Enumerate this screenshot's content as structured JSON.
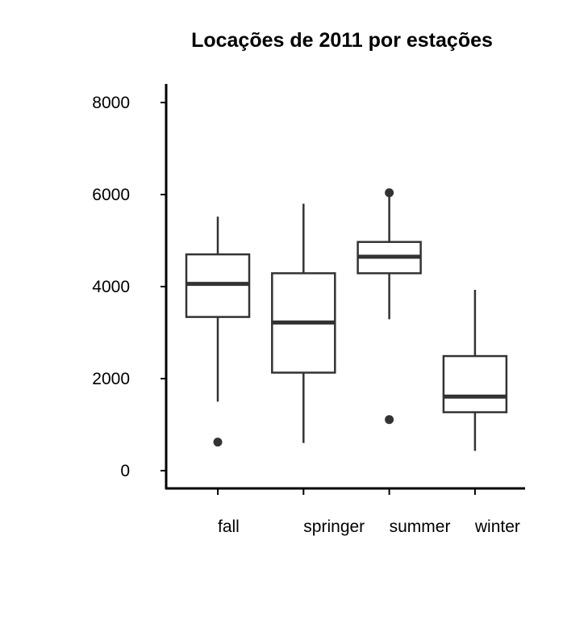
{
  "chart_data": {
    "type": "boxplot",
    "title": "Locações de 2011 por estações",
    "xlabel": "",
    "ylabel": "",
    "categories": [
      "fall",
      "springer",
      "summer",
      "winter"
    ],
    "ylim": [
      -400,
      8400
    ],
    "yticks": [
      0,
      2000,
      4000,
      6000,
      8000
    ],
    "grid": false,
    "boxes": [
      {
        "category": "fall",
        "whisker_low": 1500,
        "q1": 3340,
        "median": 4060,
        "q3": 4700,
        "whisker_high": 5520,
        "outliers": [
          620
        ]
      },
      {
        "category": "springer",
        "whisker_low": 600,
        "q1": 2130,
        "median": 3220,
        "q3": 4290,
        "whisker_high": 5800,
        "outliers": []
      },
      {
        "category": "summer",
        "whisker_low": 3290,
        "q1": 4290,
        "median": 4650,
        "q3": 4970,
        "whisker_high": 5950,
        "outliers": [
          6040,
          1110
        ]
      },
      {
        "category": "winter",
        "whisker_low": 430,
        "q1": 1270,
        "median": 1610,
        "q3": 2490,
        "whisker_high": 3930,
        "outliers": []
      }
    ],
    "colors": {
      "line": "#333333",
      "axis": "#000000",
      "point": "#333333",
      "background": "#ffffff"
    }
  }
}
